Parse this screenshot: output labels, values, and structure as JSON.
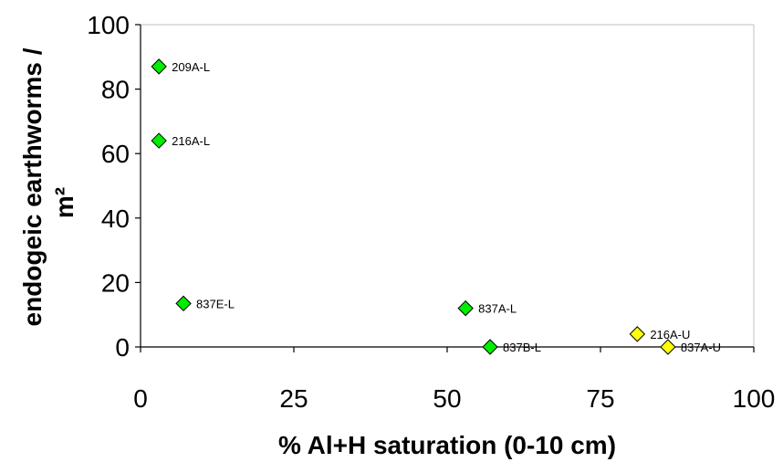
{
  "chart_data": {
    "type": "scatter",
    "title": "",
    "xlabel": "% Al+H saturation (0-10 cm)",
    "ylabel_line1": "endogeic earthworms /",
    "ylabel_line2": "m²",
    "xlim": [
      0,
      100
    ],
    "ylim": [
      0,
      100
    ],
    "xticks": [
      0,
      25,
      50,
      75,
      100
    ],
    "yticks": [
      0,
      20,
      40,
      60,
      80,
      100
    ],
    "grid": false,
    "legend": "none",
    "colors": {
      "L": "#00ee00",
      "U": "#ffff00",
      "marker_edge": "#000000",
      "axis": "#000000",
      "plot_border": "#c0c0c0"
    },
    "points": [
      {
        "label": "209A-L",
        "x": 3,
        "y": 87,
        "group": "L"
      },
      {
        "label": "216A-L",
        "x": 3,
        "y": 64,
        "group": "L"
      },
      {
        "label": "837E-L",
        "x": 7,
        "y": 13.5,
        "group": "L"
      },
      {
        "label": "837A-L",
        "x": 53,
        "y": 12,
        "group": "L"
      },
      {
        "label": "837B-L",
        "x": 57,
        "y": 0,
        "group": "L"
      },
      {
        "label": "216A-U",
        "x": 81,
        "y": 4,
        "group": "U"
      },
      {
        "label": "837A-U",
        "x": 86,
        "y": 0,
        "group": "U"
      }
    ]
  }
}
